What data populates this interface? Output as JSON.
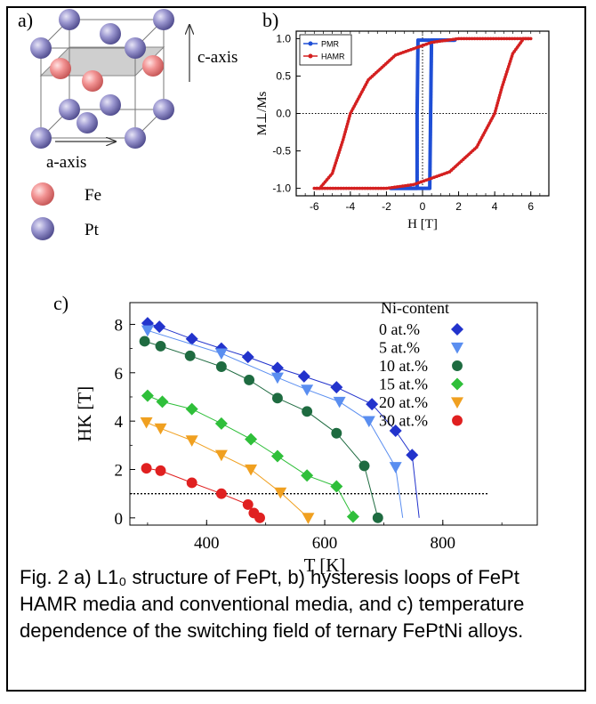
{
  "figure": {
    "panel_a_label": "a)",
    "panel_b_label": "b)",
    "panel_c_label": "c)",
    "caption": "Fig. 2 a) L1₀ structure of FePt, b) hysteresis loops of FePt HAMR media and conventional media, and c) temperature dependence of the switching field of ternary FePtNi alloys."
  },
  "panel_a": {
    "c_axis_label": "c-axis",
    "a_axis_label": "a-axis",
    "legend": [
      {
        "label": "Fe",
        "color": "#f08a8a"
      },
      {
        "label": "Pt",
        "color": "#8c88c4"
      }
    ]
  },
  "chart_data": [
    {
      "type": "line",
      "panel": "b",
      "xlabel": "H [T]",
      "ylabel": "M⊥/Ms",
      "xlim": [
        -7,
        7
      ],
      "ylim": [
        -1.1,
        1.1
      ],
      "x_ticks": [
        -6,
        -4,
        -2,
        0,
        2,
        4,
        6
      ],
      "y_ticks": [
        -1.0,
        -0.5,
        0.0,
        0.5,
        1.0
      ],
      "y_tick_labels": [
        "-1.0",
        "-0.5",
        "0.0",
        "0.5",
        "1.0"
      ],
      "legend_position": "top-left",
      "series": [
        {
          "name": "PMR",
          "color": "#1f4fd6",
          "branches": [
            [
              [
                -1.8,
                -1.0
              ],
              [
                -0.3,
                -1.0
              ],
              [
                -0.3,
                0.0
              ],
              [
                -0.25,
                0.98
              ],
              [
                1.8,
                0.98
              ]
            ],
            [
              [
                1.8,
                0.98
              ],
              [
                0.5,
                0.98
              ],
              [
                0.45,
                0.0
              ],
              [
                0.4,
                -1.0
              ],
              [
                -1.8,
                -1.0
              ]
            ]
          ]
        },
        {
          "name": "HAMR",
          "color": "#d42020",
          "branches": [
            [
              [
                -6,
                -1.0
              ],
              [
                -5.7,
                -1.0
              ],
              [
                -5.0,
                -0.8
              ],
              [
                -4.4,
                -0.35
              ],
              [
                -4.0,
                0.0
              ],
              [
                -3.0,
                0.45
              ],
              [
                -1.5,
                0.78
              ],
              [
                0.5,
                0.95
              ],
              [
                2.0,
                1.0
              ],
              [
                6,
                1.0
              ]
            ],
            [
              [
                6,
                1.0
              ],
              [
                5.6,
                1.0
              ],
              [
                5.0,
                0.8
              ],
              [
                4.4,
                0.35
              ],
              [
                4.0,
                0.0
              ],
              [
                3.0,
                -0.45
              ],
              [
                1.5,
                -0.78
              ],
              [
                -0.5,
                -0.95
              ],
              [
                -2.0,
                -1.0
              ],
              [
                -6,
                -1.0
              ]
            ]
          ]
        }
      ]
    },
    {
      "type": "line",
      "panel": "c",
      "xlabel": "T [K]",
      "ylabel": "HK [T]",
      "xlim": [
        270,
        960
      ],
      "ylim": [
        -0.3,
        8.9
      ],
      "x_ticks": [
        400,
        600,
        800
      ],
      "y_ticks": [
        0,
        2,
        4,
        6,
        8
      ],
      "legend_title": "Ni-content",
      "legend_position": "top-right",
      "reference_line_y": 1.0,
      "series": [
        {
          "name": "0 at.%",
          "marker": "diamond",
          "color": "#2233cc",
          "x": [
            300,
            320,
            375,
            425,
            470,
            520,
            565,
            620,
            680,
            720,
            748
          ],
          "y": [
            8.05,
            7.9,
            7.4,
            7.0,
            6.65,
            6.2,
            5.85,
            5.4,
            4.7,
            3.6,
            2.6
          ],
          "curve_end": [
            760,
            0
          ]
        },
        {
          "name": "5 at.%",
          "marker": "triangle-down",
          "color": "#5a8ef0",
          "x": [
            300,
            425,
            520,
            570,
            625,
            675,
            720
          ],
          "y": [
            7.75,
            6.8,
            5.8,
            5.3,
            4.8,
            4.0,
            2.1
          ],
          "curve_end": [
            732,
            0
          ]
        },
        {
          "name": "10 at.%",
          "marker": "circle",
          "color": "#1e6b40",
          "x": [
            295,
            322,
            372,
            425,
            472,
            520,
            570,
            620,
            667,
            690
          ],
          "y": [
            7.3,
            7.1,
            6.7,
            6.25,
            5.7,
            4.95,
            4.4,
            3.5,
            2.15,
            0.0
          ],
          "curve_end": [
            690,
            0
          ]
        },
        {
          "name": "15 at.%",
          "marker": "diamond",
          "color": "#2fbf3a",
          "x": [
            300,
            325,
            375,
            425,
            475,
            520,
            570,
            620,
            648
          ],
          "y": [
            5.05,
            4.8,
            4.5,
            3.9,
            3.25,
            2.55,
            1.75,
            1.3,
            0.05
          ],
          "curve_end": [
            648,
            0
          ]
        },
        {
          "name": "20 at.%",
          "marker": "triangle-down",
          "color": "#f0a020",
          "x": [
            298,
            322,
            375,
            425,
            475,
            525,
            572
          ],
          "y": [
            3.95,
            3.7,
            3.2,
            2.6,
            2.0,
            1.05,
            0.0
          ],
          "curve_end": [
            572,
            0
          ]
        },
        {
          "name": "30 at.%",
          "marker": "circle",
          "color": "#e02020",
          "x": [
            298,
            322,
            375,
            425,
            470,
            480,
            490
          ],
          "y": [
            2.05,
            1.95,
            1.45,
            1.0,
            0.55,
            0.2,
            0.0
          ],
          "curve_end": [
            490,
            0
          ]
        }
      ]
    }
  ]
}
